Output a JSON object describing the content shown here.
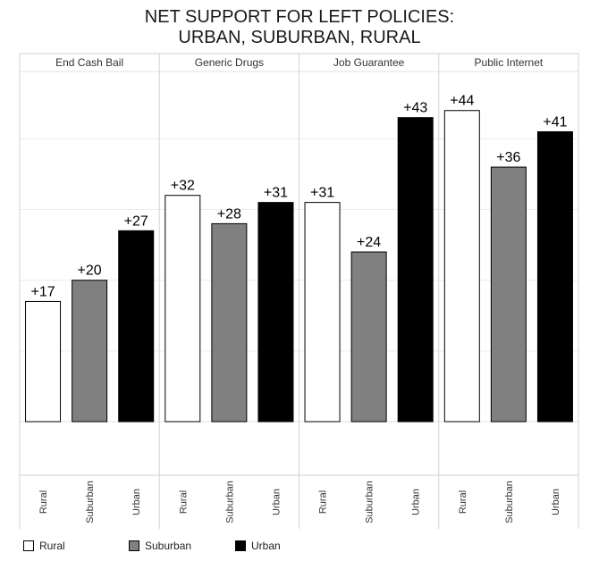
{
  "chart_data": {
    "type": "bar",
    "title_line1": "NET SUPPORT FOR LEFT POLICIES:",
    "title_line2": "URBAN, SUBURBAN, RURAL",
    "panels": [
      {
        "label": "End Cash Bail",
        "values": [
          17,
          20,
          27
        ],
        "value_labels": [
          "+17",
          "+20",
          "+27"
        ]
      },
      {
        "label": "Generic Drugs",
        "values": [
          32,
          28,
          31
        ],
        "value_labels": [
          "+32",
          "+28",
          "+31"
        ]
      },
      {
        "label": "Job Guarantee",
        "values": [
          31,
          24,
          43
        ],
        "value_labels": [
          "+31",
          "+24",
          "+43"
        ]
      },
      {
        "label": "Public Internet",
        "values": [
          44,
          36,
          41
        ],
        "value_labels": [
          "+44",
          "+36",
          "+41"
        ]
      }
    ],
    "categories": [
      "Rural",
      "Suburban",
      "Urban"
    ],
    "colors": {
      "Rural": "#ffffff",
      "Suburban": "#808080",
      "Urban": "#000000"
    },
    "ylim": [
      -7,
      48
    ],
    "gridlines": [
      10,
      20,
      30,
      40
    ],
    "legend": [
      {
        "label": "Rural",
        "color": "#ffffff"
      },
      {
        "label": "Suburban",
        "color": "#808080"
      },
      {
        "label": "Urban",
        "color": "#000000"
      }
    ]
  }
}
